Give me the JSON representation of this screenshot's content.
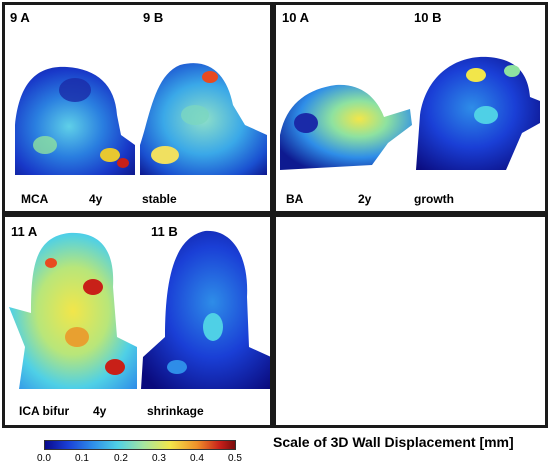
{
  "panels": {
    "p9": {
      "label_a": "9 A",
      "label_b": "9 B",
      "captions": [
        "MCA",
        "4y",
        "stable"
      ]
    },
    "p10": {
      "label_a": "10 A",
      "label_b": "10 B",
      "captions": [
        "BA",
        "2y",
        "growth"
      ]
    },
    "p11": {
      "label_a": "11 A",
      "label_b": "11 B",
      "captions": [
        "ICA bifur",
        "4y",
        "shrinkage"
      ]
    }
  },
  "colorbar": {
    "title": "Scale of 3D Wall Displacement [mm]",
    "ticks": [
      "0.0",
      "0.1",
      "0.2",
      "0.3",
      "0.4",
      "0.5"
    ],
    "range": [
      0.0,
      0.5
    ]
  },
  "colors": {
    "border": "#1a1a1a",
    "low": "#0a0a8c",
    "high": "#7a0c0c"
  }
}
